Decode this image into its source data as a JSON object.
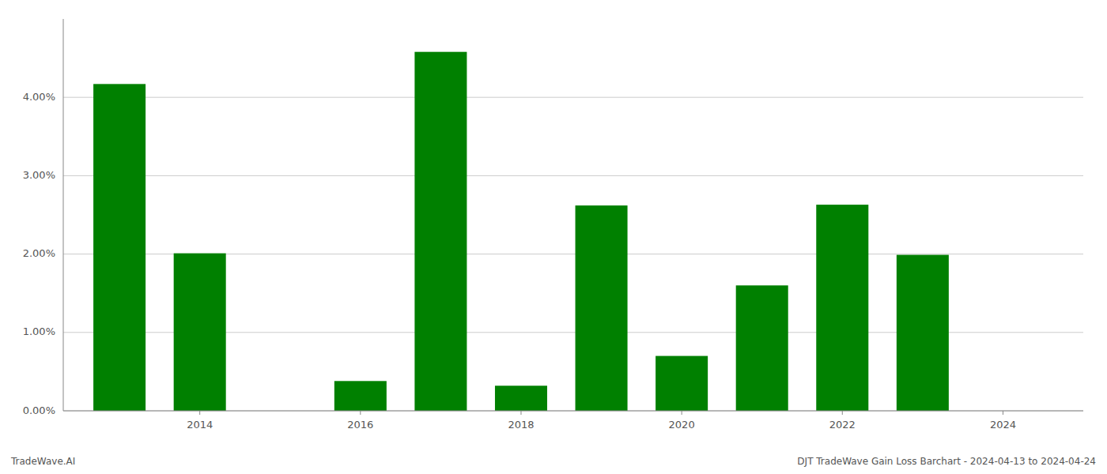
{
  "chart_data": {
    "type": "bar",
    "title": "DJT TradeWave Gain Loss Barchart - 2024-04-13 to 2024-04-24",
    "annotations": [
      "TradeWave.AI"
    ],
    "x": [
      2013,
      2014,
      2016,
      2017,
      2018,
      2019,
      2020,
      2021,
      2022,
      2023
    ],
    "values": [
      4.17,
      2.01,
      0.38,
      4.58,
      0.32,
      2.62,
      0.7,
      1.6,
      2.63,
      1.99
    ],
    "color": "#008000",
    "xlim": [
      2012.3,
      2025.0
    ],
    "xticks": [
      2014,
      2016,
      2018,
      2020,
      2022,
      2024
    ],
    "ylim": [
      0,
      5.0
    ],
    "yticks": [
      {
        "value": 0.0,
        "label": "0.00%"
      },
      {
        "value": 1.0,
        "label": "1.00%"
      },
      {
        "value": 2.0,
        "label": "2.00%"
      },
      {
        "value": 3.0,
        "label": "3.00%"
      },
      {
        "value": 4.0,
        "label": "4.00%"
      }
    ],
    "grid": true
  }
}
